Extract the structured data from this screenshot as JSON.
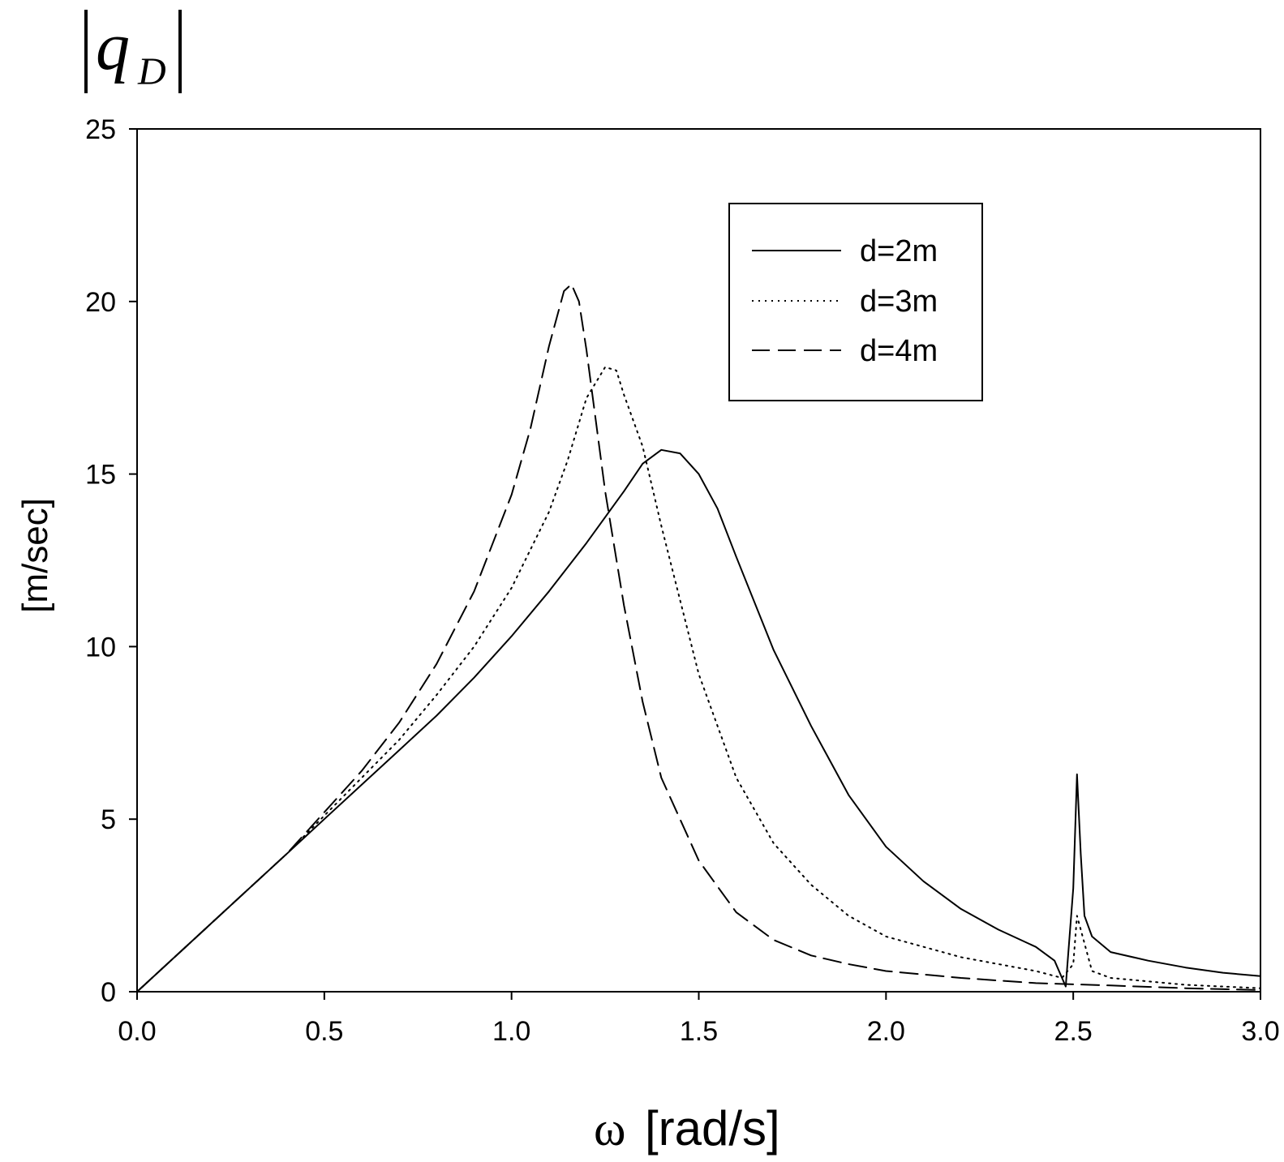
{
  "chart_data": {
    "type": "line",
    "title_symbol": {
      "main": "q",
      "subscript": "D"
    },
    "ylabel": "[m/sec]",
    "xlabel_symbol": "ω",
    "xlabel_unit": "[rad/s]",
    "xlim": [
      0,
      3
    ],
    "ylim": [
      0,
      25
    ],
    "xticks": [
      0.0,
      0.5,
      1.0,
      1.5,
      2.0,
      2.5,
      3.0
    ],
    "xtick_labels": [
      "0.0",
      "0.5",
      "1.0",
      "1.5",
      "2.0",
      "2.5",
      "3.0"
    ],
    "yticks": [
      0,
      5,
      10,
      15,
      20,
      25
    ],
    "ytick_labels": [
      "0",
      "5",
      "10",
      "15",
      "20",
      "25"
    ],
    "grid": false,
    "legend_position": "top-right",
    "series": [
      {
        "name": "d=2m",
        "style": "solid",
        "x": [
          0.0,
          0.1,
          0.2,
          0.3,
          0.4,
          0.5,
          0.6,
          0.7,
          0.8,
          0.9,
          1.0,
          1.1,
          1.2,
          1.3,
          1.35,
          1.4,
          1.45,
          1.5,
          1.55,
          1.6,
          1.7,
          1.8,
          1.9,
          2.0,
          2.1,
          2.2,
          2.3,
          2.4,
          2.45,
          2.48,
          2.5,
          2.51,
          2.52,
          2.53,
          2.55,
          2.6,
          2.7,
          2.8,
          2.9,
          3.0
        ],
        "y": [
          0.0,
          1.0,
          2.0,
          3.0,
          4.0,
          5.0,
          6.0,
          7.0,
          8.0,
          9.1,
          10.3,
          11.6,
          13.0,
          14.5,
          15.3,
          15.7,
          15.6,
          15.0,
          14.0,
          12.6,
          9.9,
          7.7,
          5.7,
          4.2,
          3.2,
          2.4,
          1.8,
          1.3,
          0.9,
          0.15,
          3.0,
          6.3,
          4.0,
          2.2,
          1.6,
          1.15,
          0.9,
          0.7,
          0.55,
          0.45
        ]
      },
      {
        "name": "d=3m",
        "style": "dotted",
        "x": [
          0.0,
          0.1,
          0.2,
          0.3,
          0.4,
          0.5,
          0.6,
          0.7,
          0.8,
          0.9,
          1.0,
          1.1,
          1.15,
          1.2,
          1.25,
          1.28,
          1.3,
          1.35,
          1.4,
          1.5,
          1.6,
          1.7,
          1.8,
          1.9,
          2.0,
          2.2,
          2.4,
          2.47,
          2.5,
          2.51,
          2.55,
          2.6,
          2.8,
          3.0
        ],
        "y": [
          0.0,
          1.0,
          2.0,
          3.0,
          4.0,
          5.1,
          6.2,
          7.3,
          8.6,
          10.0,
          11.7,
          13.9,
          15.4,
          17.2,
          18.1,
          18.0,
          17.3,
          15.8,
          13.5,
          9.2,
          6.2,
          4.3,
          3.1,
          2.2,
          1.6,
          1.0,
          0.6,
          0.4,
          0.8,
          2.2,
          0.6,
          0.4,
          0.2,
          0.1
        ]
      },
      {
        "name": "d=4m",
        "style": "dashed",
        "x": [
          0.0,
          0.1,
          0.2,
          0.3,
          0.4,
          0.5,
          0.6,
          0.7,
          0.8,
          0.9,
          1.0,
          1.05,
          1.1,
          1.14,
          1.16,
          1.18,
          1.2,
          1.25,
          1.3,
          1.35,
          1.4,
          1.5,
          1.6,
          1.7,
          1.8,
          1.9,
          2.0,
          2.2,
          2.4,
          2.6,
          2.8,
          3.0
        ],
        "y": [
          0.0,
          1.0,
          2.0,
          3.0,
          4.0,
          5.2,
          6.4,
          7.8,
          9.5,
          11.6,
          14.4,
          16.3,
          18.7,
          20.3,
          20.5,
          20.0,
          18.6,
          14.5,
          11.2,
          8.4,
          6.2,
          3.8,
          2.3,
          1.5,
          1.05,
          0.8,
          0.6,
          0.4,
          0.25,
          0.18,
          0.1,
          0.05
        ]
      }
    ]
  }
}
